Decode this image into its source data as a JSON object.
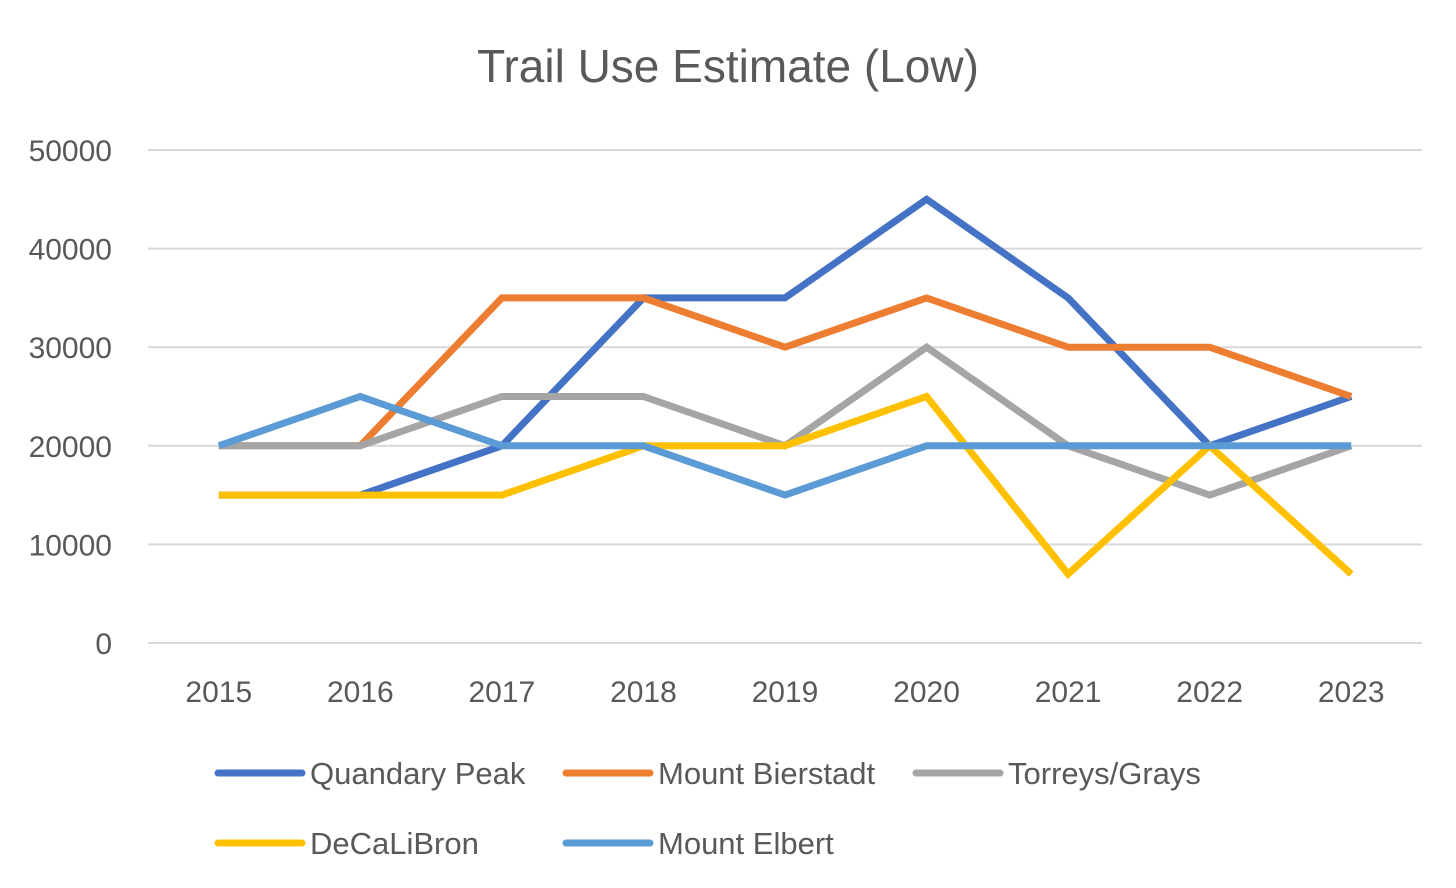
{
  "chart_data": {
    "type": "line",
    "title": "Trail Use Estimate (Low)",
    "xlabel": "",
    "ylabel": "",
    "categories": [
      "2015",
      "2016",
      "2017",
      "2018",
      "2019",
      "2020",
      "2021",
      "2022",
      "2023"
    ],
    "ylim": [
      0,
      50000
    ],
    "yticks": [
      "0",
      "10000",
      "20000",
      "30000",
      "40000",
      "50000"
    ],
    "grid": true,
    "legend_position": "bottom",
    "series": [
      {
        "name": "Quandary Peak",
        "color": "#4472C4",
        "values": [
          15000,
          15000,
          20000,
          35000,
          35000,
          45000,
          35000,
          20000,
          25000
        ]
      },
      {
        "name": "Mount Bierstadt",
        "color": "#ED7D31",
        "values": [
          20000,
          20000,
          35000,
          35000,
          30000,
          35000,
          30000,
          30000,
          25000
        ]
      },
      {
        "name": "Torreys/Grays",
        "color": "#A5A5A5",
        "values": [
          20000,
          20000,
          25000,
          25000,
          20000,
          30000,
          20000,
          15000,
          20000
        ]
      },
      {
        "name": "DeCaLiBron",
        "color": "#FFC000",
        "values": [
          15000,
          15000,
          15000,
          20000,
          20000,
          25000,
          7000,
          20000,
          7000
        ]
      },
      {
        "name": "Mount Elbert",
        "color": "#5B9BD5",
        "values": [
          20000,
          25000,
          20000,
          20000,
          15000,
          20000,
          20000,
          20000,
          20000
        ]
      }
    ]
  }
}
